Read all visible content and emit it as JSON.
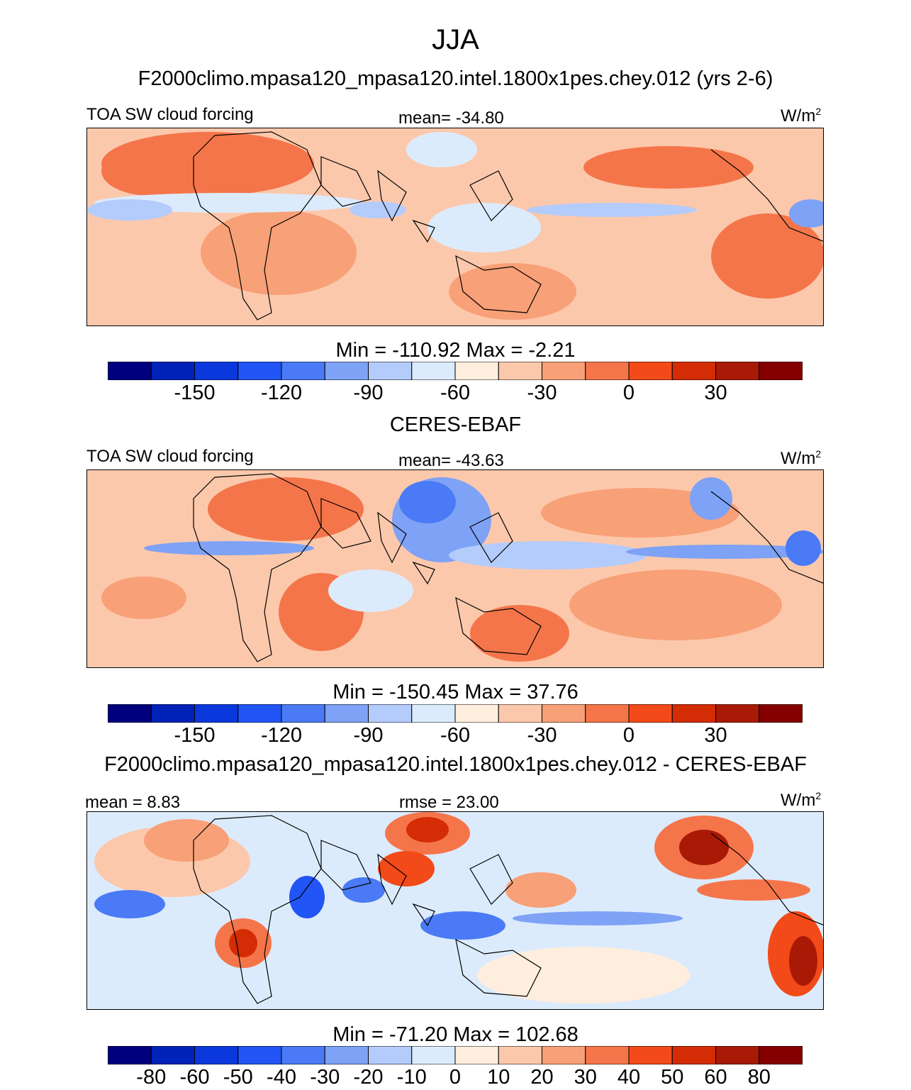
{
  "figure": {
    "season": "JJA",
    "case_title": "F2000climo.mpasa120_mpasa120.intel.1800x1pes.chey.012 (yrs 2-6)",
    "obs_title": "CERES-EBAF",
    "diff_title": "F2000climo.mpasa120_mpasa120.intel.1800x1pes.chey.012 - CERES-EBAF"
  },
  "chart_data": [
    {
      "type": "heatmap",
      "panel": "model",
      "variable": "TOA SW cloud forcing",
      "mean_label": "mean= -34.80",
      "units_base": "W/m",
      "units_exp": "2",
      "minmax": "Min = -110.92 Max =  -2.21",
      "stats": {
        "mean": -34.8,
        "min": -110.92,
        "max": -2.21
      },
      "colorbar": {
        "levels": [
          -170,
          -160,
          -150,
          -140,
          -130,
          -120,
          -110,
          -100,
          -90,
          -80,
          -70,
          -60,
          -50,
          -40,
          -30,
          -20,
          -10,
          0,
          10,
          20,
          30,
          40,
          50
        ],
        "tick_labels": [
          "-150",
          "-120",
          "-90",
          "-60",
          "-30",
          "0",
          "30"
        ],
        "colors": [
          "#00007f",
          "#0022b8",
          "#0a38dd",
          "#2255f5",
          "#4a7af5",
          "#7ea2f5",
          "#b4ccfb",
          "#dcebfc",
          "#ffeedd",
          "#fcc8ac",
          "#f8a077",
          "#f5754a",
          "#f24a18",
          "#d42c05",
          "#a81a05",
          "#840000"
        ]
      }
    },
    {
      "type": "heatmap",
      "panel": "obs",
      "variable": "TOA SW cloud forcing",
      "mean_label": "mean= -43.63",
      "units_base": "W/m",
      "units_exp": "2",
      "minmax": "Min = -150.45 Max =  37.76",
      "stats": {
        "mean": -43.63,
        "min": -150.45,
        "max": 37.76
      },
      "colorbar": {
        "tick_labels": [
          "-150",
          "-120",
          "-90",
          "-60",
          "-30",
          "0",
          "30"
        ],
        "colors": [
          "#00007f",
          "#0022b8",
          "#0a38dd",
          "#2255f5",
          "#4a7af5",
          "#7ea2f5",
          "#b4ccfb",
          "#dcebfc",
          "#ffeedd",
          "#fcc8ac",
          "#f8a077",
          "#f5754a",
          "#f24a18",
          "#d42c05",
          "#a81a05",
          "#840000"
        ]
      }
    },
    {
      "type": "heatmap",
      "panel": "difference",
      "mean_label": "mean =   8.83",
      "rmse_label": "rmse =  23.00",
      "units_base": "W/m",
      "units_exp": "2",
      "minmax": "Min = -71.20 Max = 102.68",
      "stats": {
        "mean": 8.83,
        "rmse": 23.0,
        "min": -71.2,
        "max": 102.68
      },
      "colorbar": {
        "tick_labels": [
          "-80",
          "-60",
          "-50",
          "-40",
          "-30",
          "-20",
          "-10",
          "0",
          "10",
          "20",
          "30",
          "40",
          "50",
          "60",
          "80"
        ],
        "colors": [
          "#00007f",
          "#0022b8",
          "#0a38dd",
          "#2255f5",
          "#4a7af5",
          "#7ea2f5",
          "#b4ccfb",
          "#dcebfc",
          "#ffeedd",
          "#fcc8ac",
          "#f8a077",
          "#f5754a",
          "#f24a18",
          "#d42c05",
          "#a81a05",
          "#840000"
        ]
      }
    }
  ]
}
